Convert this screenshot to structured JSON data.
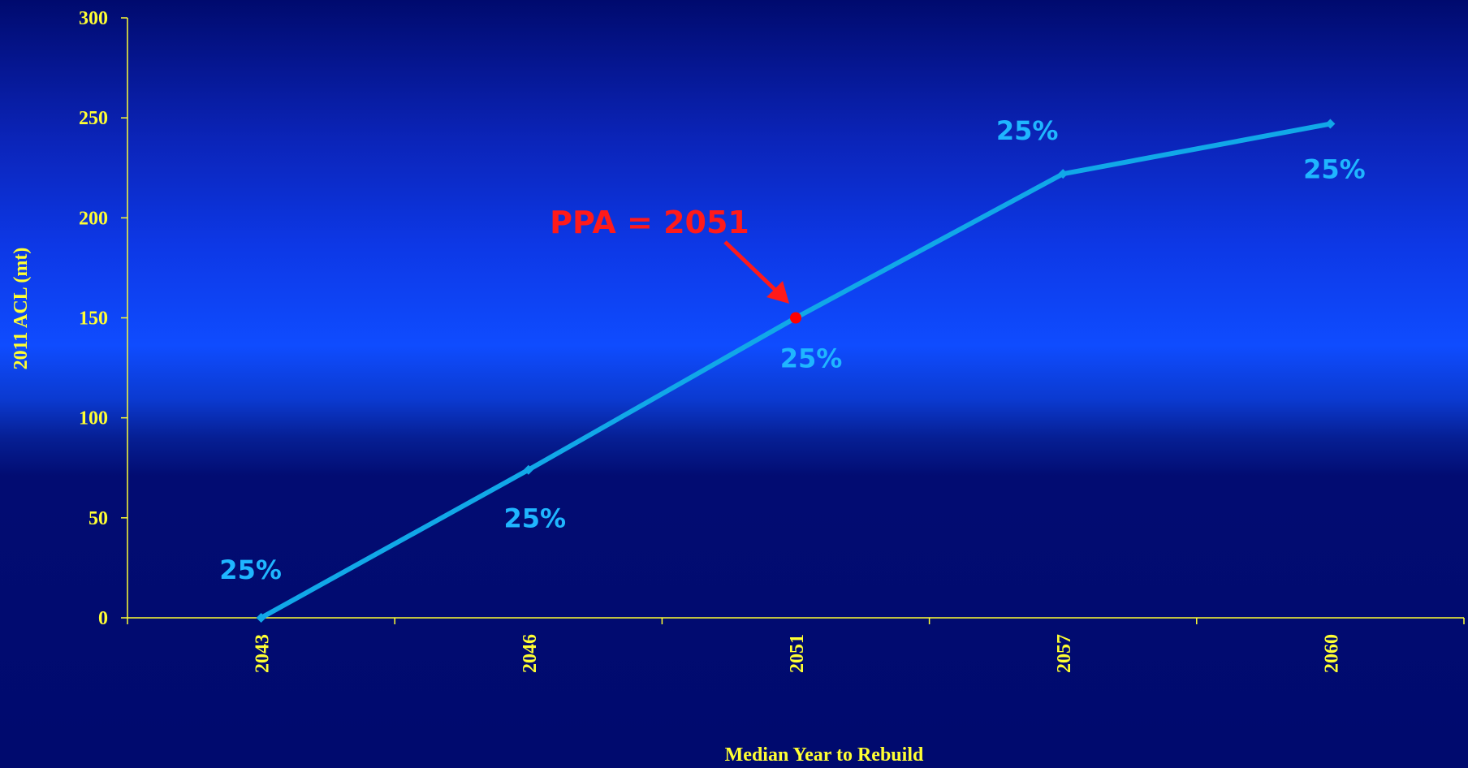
{
  "chart_data": {
    "type": "line",
    "title": "",
    "xlabel": "Median Year to Rebuild",
    "ylabel": "2011 ACL (mt)",
    "categories": [
      "2043",
      "2046",
      "2051",
      "2057",
      "2060"
    ],
    "ylim": [
      0,
      300
    ],
    "yticks": [
      0,
      50,
      100,
      150,
      200,
      250,
      300
    ],
    "series": [
      {
        "values": [
          0,
          74,
          150,
          222,
          247
        ],
        "color": "#11a8e8"
      }
    ],
    "data_labels": [
      "25%",
      "25%",
      "25%",
      "25%",
      "25%"
    ],
    "highlight": {
      "index": 2,
      "color": "#ff0000"
    },
    "annotation": {
      "text": "PPA = 2051",
      "color": "#ff1a1a"
    },
    "grid": false,
    "legend": "none"
  }
}
